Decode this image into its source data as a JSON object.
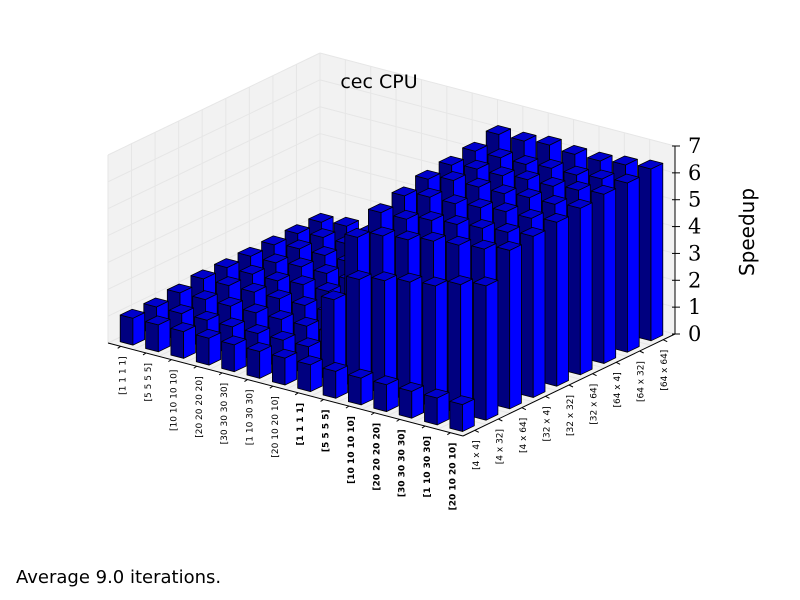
{
  "chart_data": {
    "type": "bar3d",
    "title": "cec CPU",
    "zlabel": "Speedup",
    "zlim": [
      0,
      7
    ],
    "z_ticks": [
      "0",
      "1",
      "2",
      "3",
      "4",
      "5",
      "6",
      "7"
    ],
    "x_categories": [
      "[1 1 1 1]",
      "[5 5 5 5]",
      "[10 10 10 10]",
      "[20 20 20 20]",
      "[30 30 30 30]",
      "[1 10 30 30]",
      "[20 10 20 10]",
      "[1 1 1 1]",
      "[5 5 5 5]",
      "[10 10 10 10]",
      "[20 20 20 20]",
      "[30 30 30 30]",
      "[1 10 30 30]",
      "[20 10 20 10]"
    ],
    "x_bold": [
      false,
      false,
      false,
      false,
      false,
      false,
      false,
      true,
      true,
      true,
      true,
      true,
      true,
      true
    ],
    "y_categories": [
      "[4 x 4]",
      "[4 x 32]",
      "[4 x 64]",
      "[32 x 4]",
      "[32 x 32]",
      "[32 x 64]",
      "[64 x 4]",
      "[64 x 32]",
      "[64 x 64]"
    ],
    "values": [
      [
        1.0,
        1.0,
        1.1,
        1.2,
        1.2,
        1.2,
        1.2,
        1.2,
        1.2
      ],
      [
        1.0,
        1.0,
        1.1,
        1.2,
        1.2,
        1.2,
        1.3,
        1.3,
        1.3
      ],
      [
        1.0,
        1.0,
        1.1,
        1.2,
        1.2,
        1.3,
        1.3,
        1.3,
        1.3
      ],
      [
        1.0,
        1.0,
        1.1,
        1.2,
        1.3,
        1.3,
        1.3,
        1.3,
        1.3
      ],
      [
        1.0,
        1.0,
        1.1,
        1.2,
        1.3,
        1.3,
        1.3,
        1.3,
        1.3
      ],
      [
        1.0,
        1.0,
        1.1,
        1.2,
        1.3,
        1.3,
        1.3,
        1.3,
        1.3
      ],
      [
        1.0,
        1.0,
        1.1,
        1.2,
        1.3,
        1.3,
        1.3,
        1.3,
        1.3
      ],
      [
        1.0,
        3.0,
        4.9,
        5.4,
        5.6,
        5.8,
        5.9,
        6.0,
        6.2
      ],
      [
        1.0,
        4.0,
        5.2,
        5.4,
        5.8,
        6.0,
        6.0,
        6.0,
        6.2
      ],
      [
        1.0,
        4.2,
        5.3,
        5.6,
        5.8,
        6.0,
        6.0,
        6.0,
        6.3
      ],
      [
        1.0,
        4.4,
        5.5,
        5.7,
        5.9,
        6.0,
        6.1,
        6.1,
        6.2
      ],
      [
        1.0,
        4.5,
        5.6,
        5.8,
        6.0,
        6.1,
        6.1,
        6.1,
        6.2
      ],
      [
        1.0,
        4.8,
        5.7,
        5.9,
        6.0,
        6.1,
        6.2,
        6.2,
        6.3
      ],
      [
        1.0,
        5.0,
        5.9,
        6.0,
        6.1,
        6.2,
        6.3,
        6.3,
        6.4
      ]
    ],
    "colors": {
      "top": "#0000cc",
      "front": "#00007f",
      "side": "#0000ff",
      "edge": "#000000",
      "pane": "#f2f2f2",
      "grid": "#e6e6e6"
    },
    "grid": true,
    "legend": false
  },
  "footnote": "Average 9.0 iterations."
}
